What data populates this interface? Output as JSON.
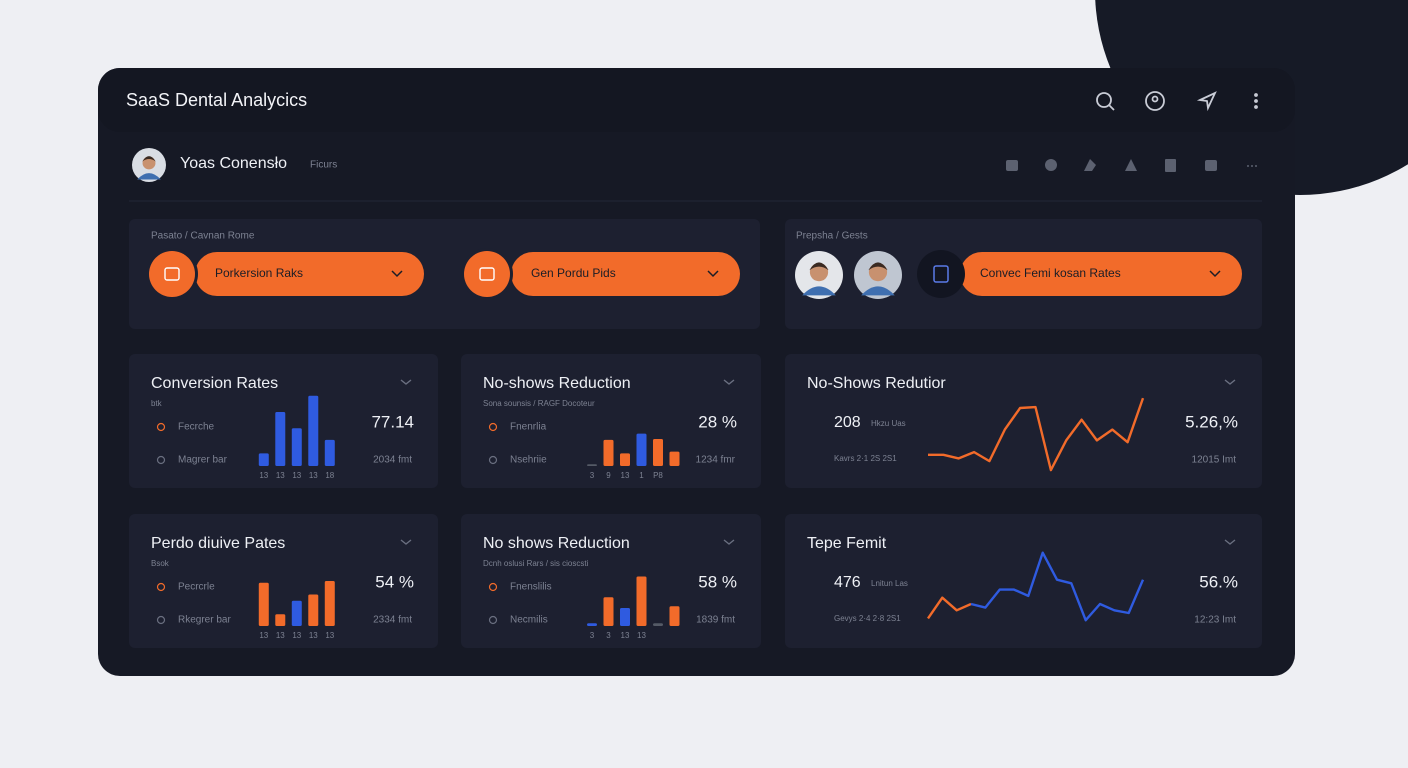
{
  "header": {
    "title": "SaaS Dental Analycics"
  },
  "user": {
    "name": "Yoas Conensło",
    "note": "Ficurs"
  },
  "filters": {
    "left": {
      "label": "Pasato / Cavnan Rome",
      "pills": [
        "Porkersion Raks",
        "Gen Pordu Pids"
      ]
    },
    "right": {
      "label": "Prepsha / Gests",
      "pills": [
        "Convec Femi kosan Rates"
      ]
    }
  },
  "cards": [
    {
      "title": "Conversion Rates",
      "subtitle": "btk",
      "rows": [
        "Fecrche",
        "Magrer bar"
      ],
      "value": "77.14",
      "footer": "2034 fmt",
      "chart": {
        "type": "bar",
        "ylim": [
          0,
          100
        ],
        "values": [
          14,
          60,
          42,
          78,
          29
        ],
        "colors": [
          "#2f5be0",
          "#2f5be0",
          "#2f5be0",
          "#2f5be0",
          "#2f5be0"
        ],
        "labels": [
          "13",
          "13",
          "13",
          "13",
          "18"
        ]
      }
    },
    {
      "title": "No-shows Reduction",
      "subtitle": "Sona sounsis / RAGF Docoteur",
      "rows": [
        "Fnenrlia",
        "Nsehriie"
      ],
      "value": "28 %",
      "footer": "1234 fmr",
      "chart": {
        "type": "bar",
        "ylim": [
          0,
          100
        ],
        "values": [
          2,
          29,
          14,
          36,
          30,
          16
        ],
        "colors": [
          "#555a66",
          "#f26b2a",
          "#f26b2a",
          "#2f5be0",
          "#f26b2a",
          "#f26b2a"
        ],
        "labels": [
          "3",
          "9",
          "13",
          "1",
          "P8",
          null
        ]
      }
    },
    {
      "title": "No-Shows Redutior",
      "big": "208",
      "note": "Hkzu Uas",
      "left_footer": "Kavrs 2·1 2S 2S1",
      "value": "5.26,%",
      "footer": "12015 Imt",
      "chart": {
        "type": "line",
        "ylim": [
          0,
          100
        ],
        "series": [
          {
            "color": "#f26b2a",
            "values": [
              28,
              28,
              24,
              31,
              21,
              56,
              80,
              81,
              11,
              44,
              67,
              44,
              56,
              42,
              91
            ]
          }
        ]
      }
    },
    {
      "title": "Perdo diuive Pates",
      "subtitle": "Bsok",
      "rows": [
        "Pecrcrle",
        "Rkegrer bar"
      ],
      "value": "54 %",
      "footer": "2334 fmt",
      "chart": {
        "type": "bar",
        "ylim": [
          0,
          100
        ],
        "values": [
          48,
          13,
          28,
          35,
          50
        ],
        "colors": [
          "#f26b2a",
          "#f26b2a",
          "#2f5be0",
          "#f26b2a",
          "#f26b2a"
        ],
        "labels": [
          "13",
          "13",
          "13",
          "13",
          "13"
        ]
      }
    },
    {
      "title": "No shows Reduction",
      "subtitle": "Dcnh oslusi Rars / sis cioscsti",
      "rows": [
        "Fnenslilis",
        "Necmilis"
      ],
      "value": "58 %",
      "footer": "1839 fmt",
      "chart": {
        "type": "bar",
        "ylim": [
          0,
          100
        ],
        "values": [
          3,
          32,
          20,
          55,
          3,
          22
        ],
        "colors": [
          "#2f5be0",
          "#f26b2a",
          "#2f5be0",
          "#f26b2a",
          "#555a66",
          "#f26b2a"
        ],
        "labels": [
          "3",
          "3",
          "13",
          "13",
          null,
          null
        ]
      }
    },
    {
      "title": "Tepe Femit",
      "big": "476",
      "note": "Lnitun Las",
      "left_footer": "Gevys 2·4 2·8 2S1",
      "value": "56.%",
      "footer": "12:23 Imt",
      "chart": {
        "type": "line",
        "ylim": [
          0,
          100
        ],
        "series": [
          {
            "color": "#f26b2a",
            "values": [
              24,
              47,
              33,
              40,
              null,
              null,
              null,
              null,
              null,
              null,
              null,
              null,
              null,
              null,
              null,
              null
            ]
          },
          {
            "color": "#2f5be0",
            "values": [
              null,
              null,
              null,
              40,
              36,
              56,
              56,
              49,
              97,
              67,
              63,
              22,
              40,
              33,
              30,
              67
            ]
          }
        ]
      }
    }
  ]
}
